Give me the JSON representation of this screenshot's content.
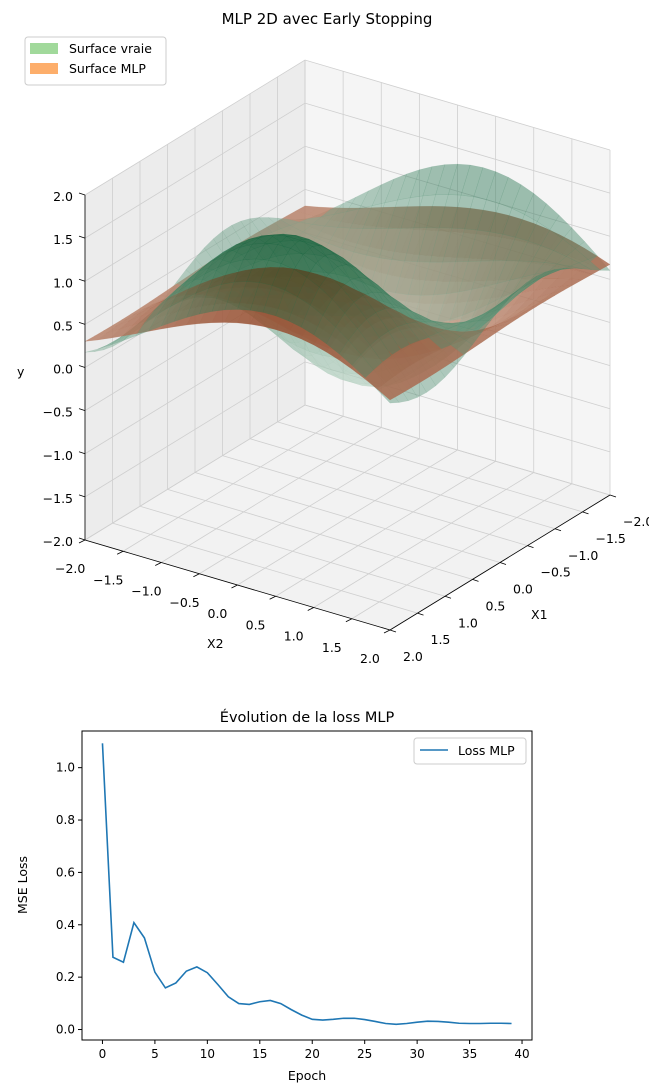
{
  "chart_data": [
    {
      "type": "surface3d",
      "title": "MLP 2D avec Early Stopping",
      "xlabel": "X1",
      "ylabel": "X2",
      "zlabel": "y",
      "xlim": [
        -2,
        2
      ],
      "ylim": [
        -2,
        2
      ],
      "zlim": [
        -2,
        2
      ],
      "x_ticks": [
        "−2.0",
        "−1.5",
        "−1.0",
        "−0.5",
        "0.0",
        "0.5",
        "1.0",
        "1.5",
        "2.0"
      ],
      "y_ticks": [
        "−2.0",
        "−1.5",
        "−1.0",
        "−0.5",
        "0.0",
        "0.5",
        "1.0",
        "1.5",
        "2.0"
      ],
      "z_ticks": [
        "−2.0",
        "−1.5",
        "−1.0",
        "−0.5",
        "0.0",
        "0.5",
        "1.0",
        "1.5",
        "2.0"
      ],
      "legend_position": "top-left",
      "series": [
        {
          "name": "Surface vraie",
          "color": "#a1d99b",
          "colormap": "Greens"
        },
        {
          "name": "Surface MLP",
          "color": "#fdae6b",
          "colormap": "Oranges"
        }
      ]
    },
    {
      "type": "line",
      "title": "Évolution de la loss MLP",
      "xlabel": "Epoch",
      "ylabel": "MSE Loss",
      "xlim": [
        -1.95,
        40.95
      ],
      "ylim": [
        -0.04,
        1.14
      ],
      "x_ticks": [
        0,
        5,
        10,
        15,
        20,
        25,
        30,
        35,
        40
      ],
      "y_ticks": [
        "0.0",
        "0.2",
        "0.4",
        "0.6",
        "0.8",
        "1.0"
      ],
      "legend_position": "top-right",
      "series": [
        {
          "name": "Loss MLP",
          "color": "#1f77b4",
          "x": [
            0,
            1,
            2,
            3,
            4,
            5,
            6,
            7,
            8,
            9,
            10,
            11,
            12,
            13,
            14,
            15,
            16,
            17,
            18,
            19,
            20,
            21,
            22,
            23,
            24,
            25,
            26,
            27,
            28,
            29,
            30,
            31,
            32,
            33,
            34,
            35,
            36,
            37,
            38,
            39
          ],
          "y": [
            1.093,
            0.276,
            0.257,
            0.408,
            0.35,
            0.219,
            0.159,
            0.178,
            0.223,
            0.239,
            0.217,
            0.172,
            0.125,
            0.099,
            0.096,
            0.106,
            0.111,
            0.099,
            0.076,
            0.055,
            0.039,
            0.036,
            0.039,
            0.043,
            0.043,
            0.038,
            0.031,
            0.023,
            0.02,
            0.023,
            0.028,
            0.032,
            0.031,
            0.028,
            0.024,
            0.023,
            0.023,
            0.024,
            0.024,
            0.023
          ]
        }
      ]
    }
  ]
}
